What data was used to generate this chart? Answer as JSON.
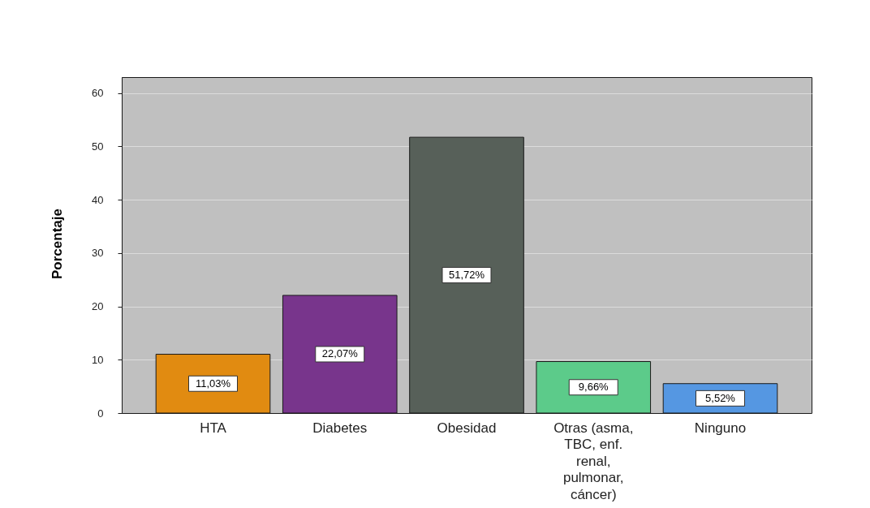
{
  "chart_data": {
    "type": "bar",
    "ylabel": "Porcentaje",
    "categories": [
      "HTA",
      "Diabetes",
      "Obesidad",
      "Otras (asma, TBC, enf. renal, pulmonar, cáncer)",
      "Ninguno"
    ],
    "values": [
      11.03,
      22.07,
      51.72,
      9.66,
      5.52
    ],
    "colors": [
      "#e18b11",
      "#78358c",
      "#576059",
      "#5ccb8a",
      "#5597e2"
    ],
    "value_labels": [
      "11,03%",
      "22,07%",
      "51,72%",
      "9,66%",
      "5,52%"
    ],
    "ylim": [
      0,
      63
    ],
    "yticks": [
      0,
      10,
      20,
      30,
      40,
      50,
      60
    ],
    "grid": "y"
  }
}
